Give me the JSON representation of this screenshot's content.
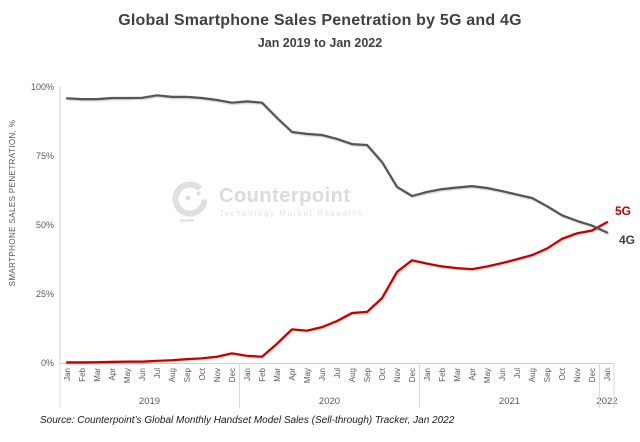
{
  "header": {
    "title": "Global Smartphone Sales Penetration by 5G and 4G",
    "subtitle": "Jan 2019 to Jan 2022"
  },
  "watermark": {
    "brand": "Counterpoint",
    "tagline": "Technology Market Research"
  },
  "footer": {
    "source": "Source: Counterpoint’s Global Monthly Handset Model Sales (Sell-through) Tracker, Jan 2022"
  },
  "chart_data": {
    "type": "line",
    "title": "Global Smartphone Sales Penetration by 5G and 4G",
    "subtitle": "Jan 2019 to Jan 2022",
    "xlabel": "",
    "ylabel": "SMARTPHONE SALES PENETRATION, %",
    "ylim": [
      0,
      100
    ],
    "yticks": [
      0,
      25,
      50,
      75,
      100
    ],
    "ytick_labels": [
      "0%",
      "25%",
      "50%",
      "75%",
      "100%"
    ],
    "grid": false,
    "legend_position": "line-end-labels",
    "x_months": [
      "Jan",
      "Feb",
      "Mar",
      "Apr",
      "May",
      "Jun",
      "Jul",
      "Aug",
      "Sep",
      "Oct",
      "Nov",
      "Dec",
      "Jan",
      "Feb",
      "Mar",
      "Apr",
      "May",
      "Jun",
      "Jul",
      "Aug",
      "Sep",
      "Oct",
      "Nov",
      "Dec",
      "Jan",
      "Feb",
      "Mar",
      "Apr",
      "May",
      "Jun",
      "Jul",
      "Aug",
      "Sep",
      "Oct",
      "Nov",
      "Dec",
      "Jan"
    ],
    "year_groups": [
      {
        "label": "2019",
        "count": 12
      },
      {
        "label": "2020",
        "count": 12
      },
      {
        "label": "2021",
        "count": 12
      },
      {
        "label": "2022",
        "count": 1
      }
    ],
    "series": [
      {
        "name": "5G",
        "color": "#c00000",
        "values": [
          0.2,
          0.2,
          0.3,
          0.4,
          0.5,
          0.5,
          0.8,
          1.0,
          1.4,
          1.7,
          2.3,
          3.5,
          2.6,
          2.3,
          7.0,
          12.2,
          11.7,
          13.0,
          15.2,
          18.1,
          18.5,
          23.5,
          33.0,
          37.2,
          36.0,
          35.0,
          34.4,
          34.0,
          35.0,
          36.2,
          37.6,
          39.1,
          41.5,
          45.0,
          47.0,
          48.0,
          51.0
        ]
      },
      {
        "name": "4G",
        "color": "#555555",
        "values": [
          95.9,
          95.6,
          95.6,
          96.0,
          96.0,
          96.1,
          97.0,
          96.4,
          96.4,
          96.0,
          95.3,
          94.3,
          94.8,
          94.3,
          88.8,
          83.7,
          83.0,
          82.6,
          81.2,
          79.3,
          79.0,
          72.8,
          63.8,
          60.5,
          62.0,
          63.0,
          63.6,
          64.1,
          63.4,
          62.3,
          61.0,
          59.8,
          56.8,
          53.5,
          51.5,
          49.8,
          47.3
        ]
      }
    ]
  },
  "colors": {
    "series_5g": "#c00000",
    "series_4g": "#555555",
    "axis": "#cfcfcf",
    "tick_text": "#595959",
    "title_text": "#404040",
    "watermark": "#dbdbdb"
  }
}
